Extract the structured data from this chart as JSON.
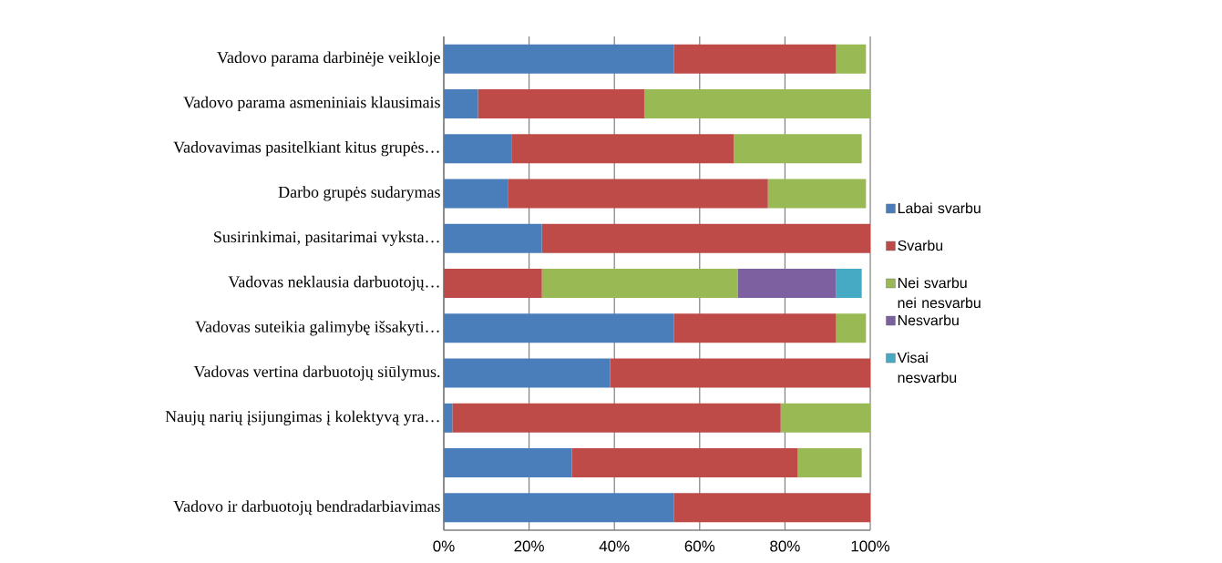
{
  "chart_data": {
    "type": "bar",
    "orientation": "horizontal",
    "stacked": true,
    "categories": [
      "Vadovo parama darbinėje veikloje",
      "Vadovo parama asmeniniais klausimais",
      "Vadovavimas pasitelkiant kitus grupės…",
      "Darbo grupės sudarymas",
      "Susirinkimai, pasitarimai vyksta…",
      "Vadovas neklausia darbuotojų…",
      "Vadovas suteikia galimybę išsakyti…",
      "Vadovas vertina darbuotojų siūlymus.",
      "Naujų narių įsijungimas į kolektyvą yra…",
      null,
      "Vadovo ir darbuotojų bendradarbiavimas"
    ],
    "series": [
      {
        "name": "Labai svarbu",
        "color": "#4a7ebb",
        "values": [
          54,
          8,
          16,
          15,
          23,
          null,
          54,
          39,
          2,
          30,
          54
        ]
      },
      {
        "name": "Svarbu",
        "color": "#be4b48",
        "values": [
          38,
          39,
          52,
          61,
          77,
          23,
          38,
          61,
          77,
          53,
          46
        ]
      },
      {
        "name": "Nei svarbu nei nesvarbu",
        "color": "#98b954",
        "values": [
          7,
          53,
          30,
          23,
          null,
          46,
          7,
          null,
          21,
          15,
          null
        ]
      },
      {
        "name": "Nesvarbu",
        "color": "#7d60a0",
        "values": [
          null,
          null,
          null,
          null,
          null,
          23,
          null,
          null,
          null,
          null,
          null
        ]
      },
      {
        "name": "Visai nesvarbu",
        "color": "#46aac5",
        "values": [
          null,
          null,
          null,
          null,
          null,
          6,
          null,
          null,
          null,
          null,
          null
        ]
      }
    ],
    "xlim": [
      0,
      100
    ],
    "xticks": [
      {
        "value": 0,
        "label": "0%"
      },
      {
        "value": 20,
        "label": "20%"
      },
      {
        "value": 40,
        "label": "40%"
      },
      {
        "value": 60,
        "label": "60%"
      },
      {
        "value": 80,
        "label": "80%"
      },
      {
        "value": 100,
        "label": "100%"
      }
    ],
    "grid": "x",
    "legend": "right"
  }
}
